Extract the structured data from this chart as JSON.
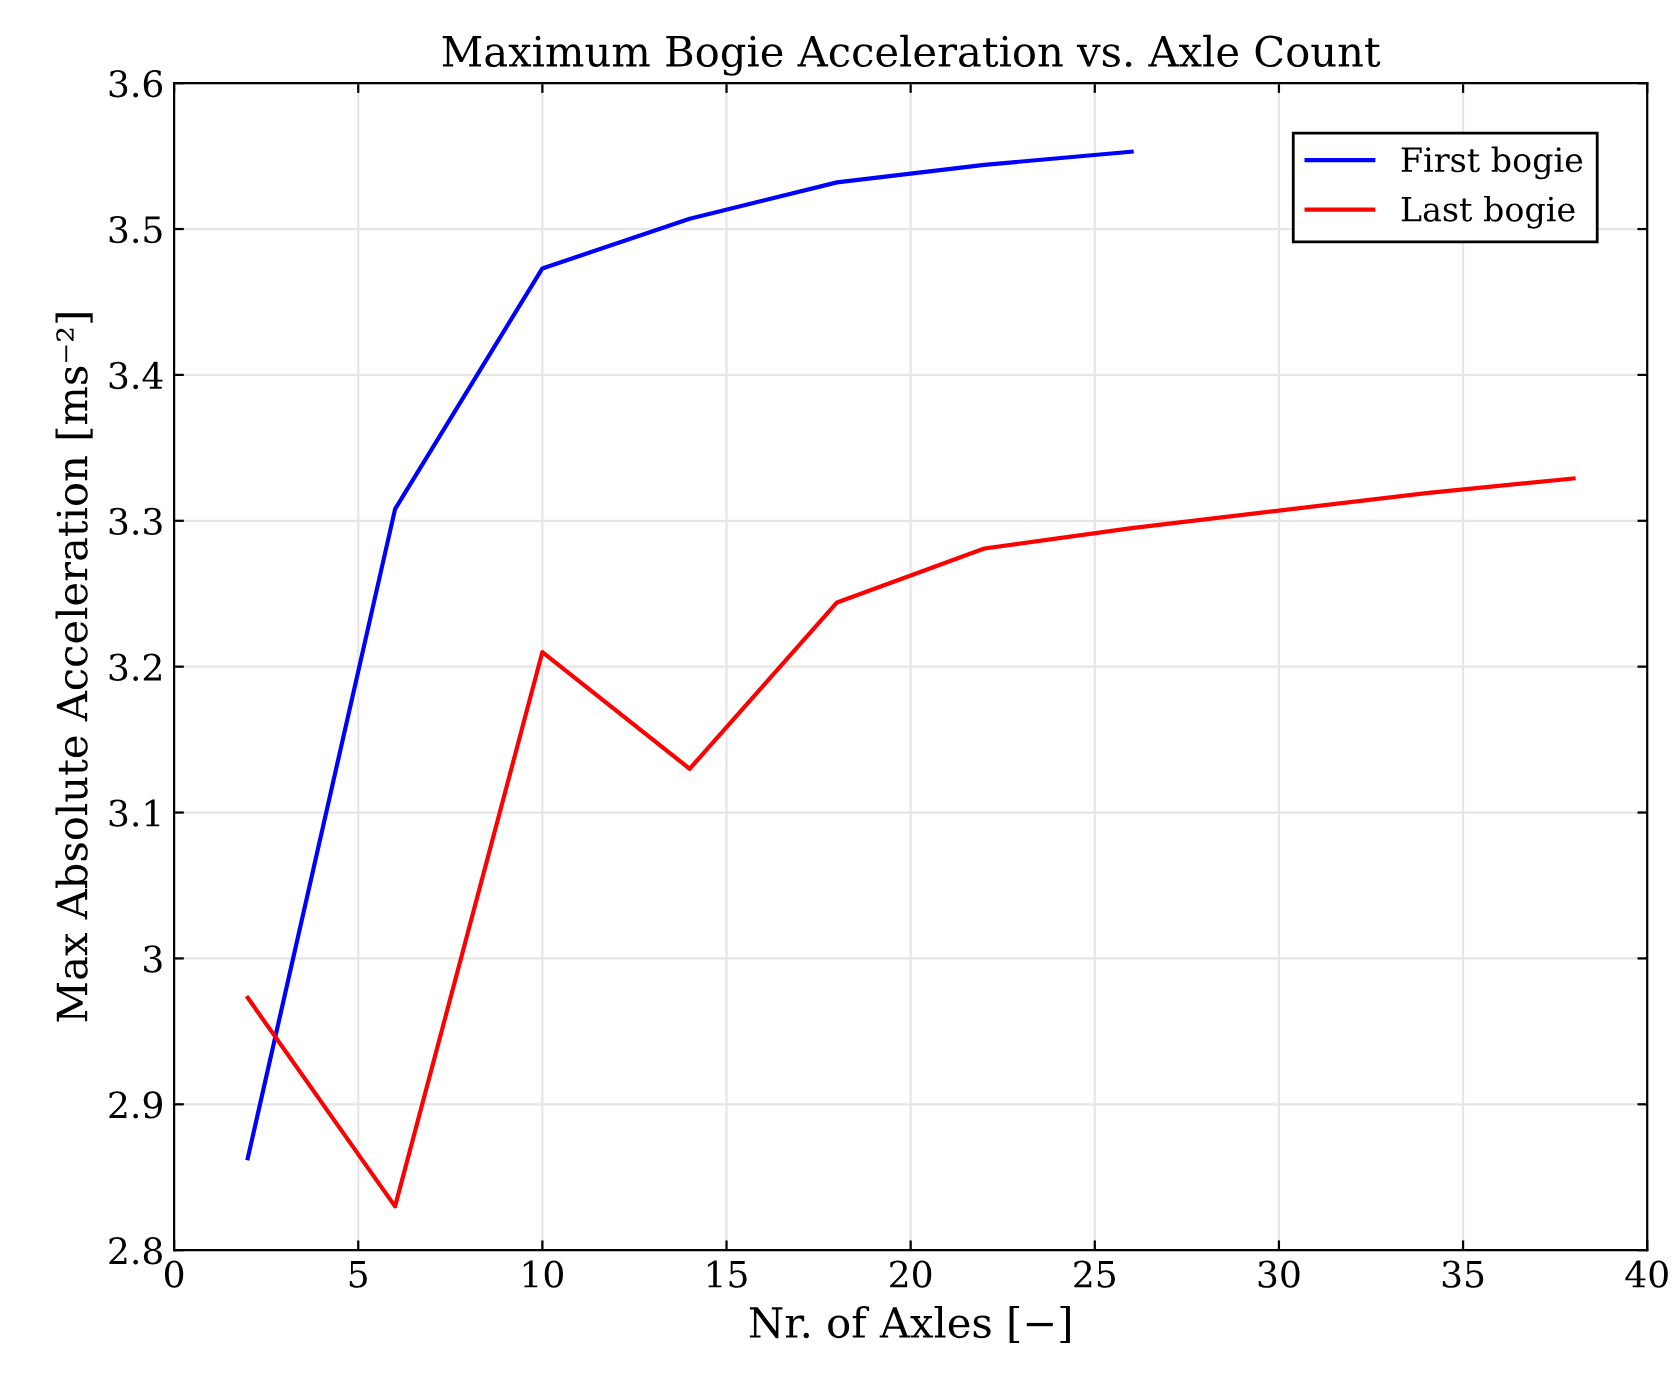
{
  "chart_data": {
    "type": "line",
    "title": "Maximum Bogie Acceleration vs. Axle Count",
    "xlabel": "Nr. of Axles [−]",
    "ylabel": "Max Absolute Acceleration [ms⁻²]",
    "x": [
      2,
      6,
      10,
      14,
      18,
      22,
      26,
      30,
      34,
      38
    ],
    "series": [
      {
        "name": "First bogie",
        "color": "#0000ff",
        "values": [
          2.863,
          3.308,
          3.473,
          3.507,
          3.532,
          3.544,
          3.553,
          null,
          null,
          null
        ]
      },
      {
        "name": "Last bogie",
        "color": "#ff0000",
        "values": [
          2.973,
          2.83,
          3.21,
          3.13,
          3.244,
          3.281,
          3.295,
          3.307,
          3.319,
          3.329
        ]
      }
    ],
    "xlim": [
      0,
      40
    ],
    "xticks": [
      0,
      5,
      10,
      15,
      20,
      25,
      30,
      35,
      40
    ],
    "ylim": [
      2.8,
      3.6
    ],
    "yticks": [
      2.8,
      2.9,
      3,
      3.1,
      3.2,
      3.3,
      3.4,
      3.5,
      3.6
    ],
    "grid": true,
    "legend": "top right",
    "line_style": "solid",
    "marker": "none"
  }
}
